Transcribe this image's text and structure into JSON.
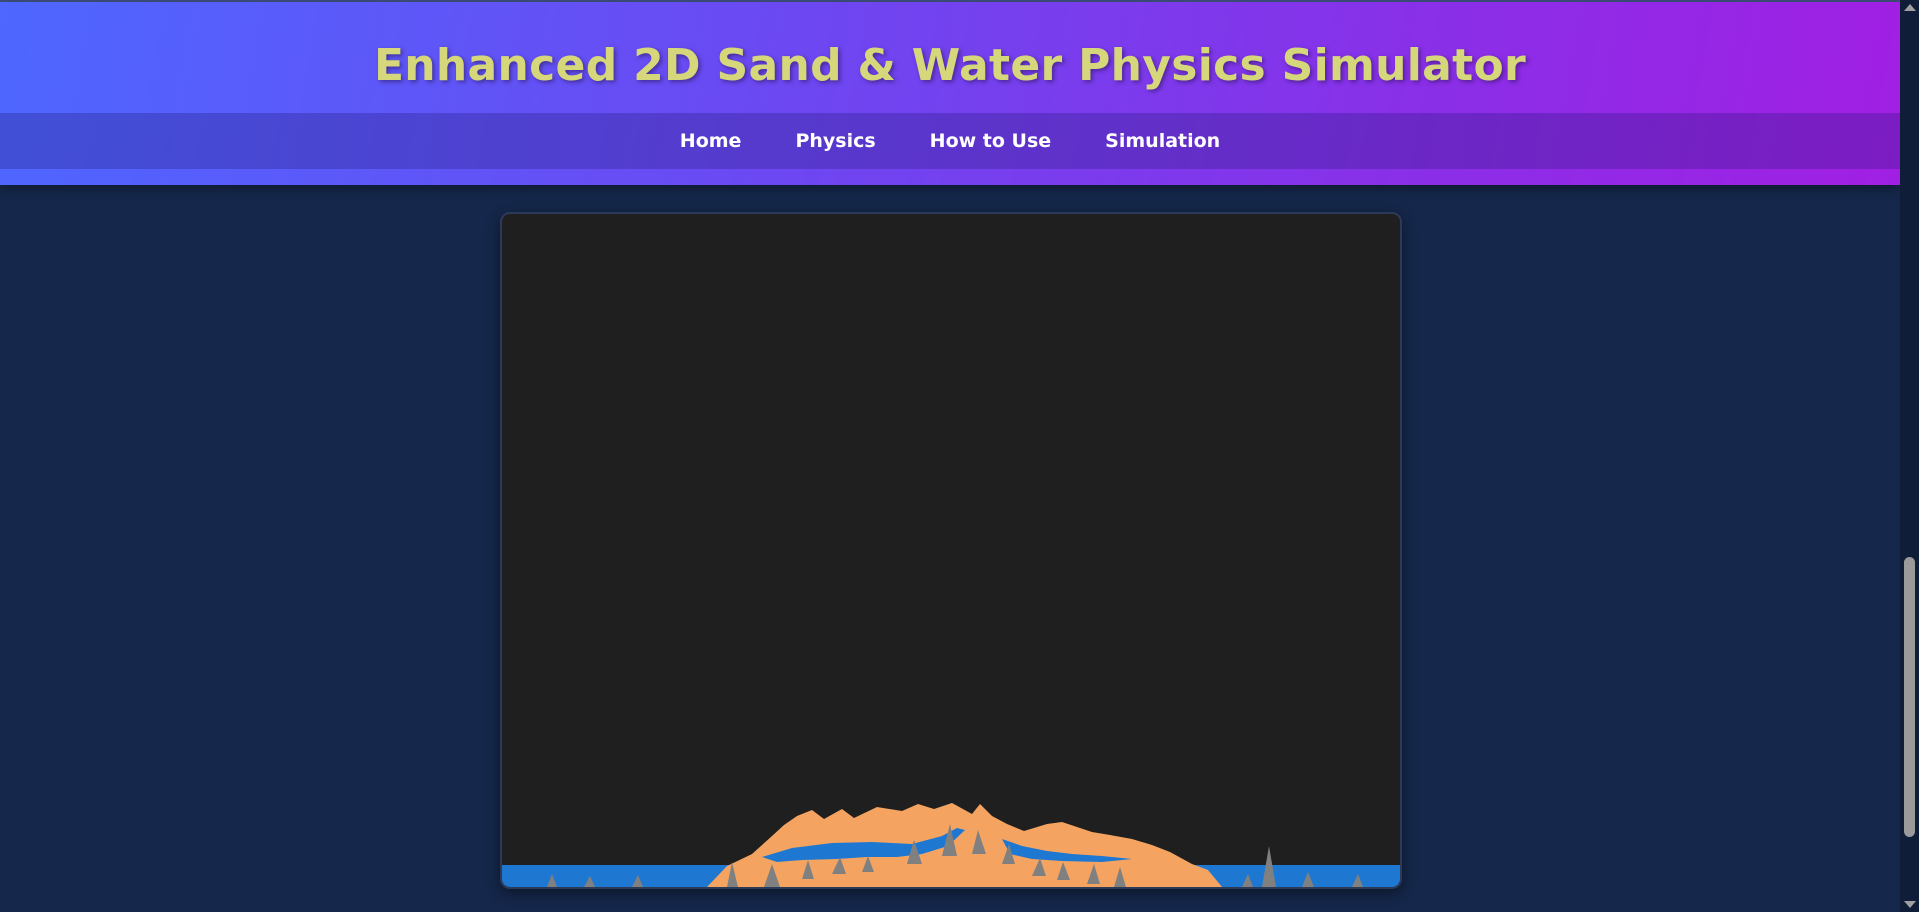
{
  "header": {
    "title": "Enhanced 2D Sand & Water Physics Simulator"
  },
  "nav": {
    "items": [
      {
        "label": "Home",
        "name": "nav-home"
      },
      {
        "label": "Physics",
        "name": "nav-physics"
      },
      {
        "label": "How to Use",
        "name": "nav-how-to-use"
      },
      {
        "label": "Simulation",
        "name": "nav-simulation"
      }
    ]
  },
  "simulation": {
    "background_color": "#1f1f1f",
    "sand_color": "#f4a460",
    "water_color": "#1e78d2",
    "stone_color": "#808080"
  },
  "colors": {
    "page_background": "#15274a",
    "header_gradient_start": "#4e67ff",
    "header_gradient_end": "#a11fe3",
    "title_color": "#d6d77a",
    "nav_text": "#ffffff"
  }
}
